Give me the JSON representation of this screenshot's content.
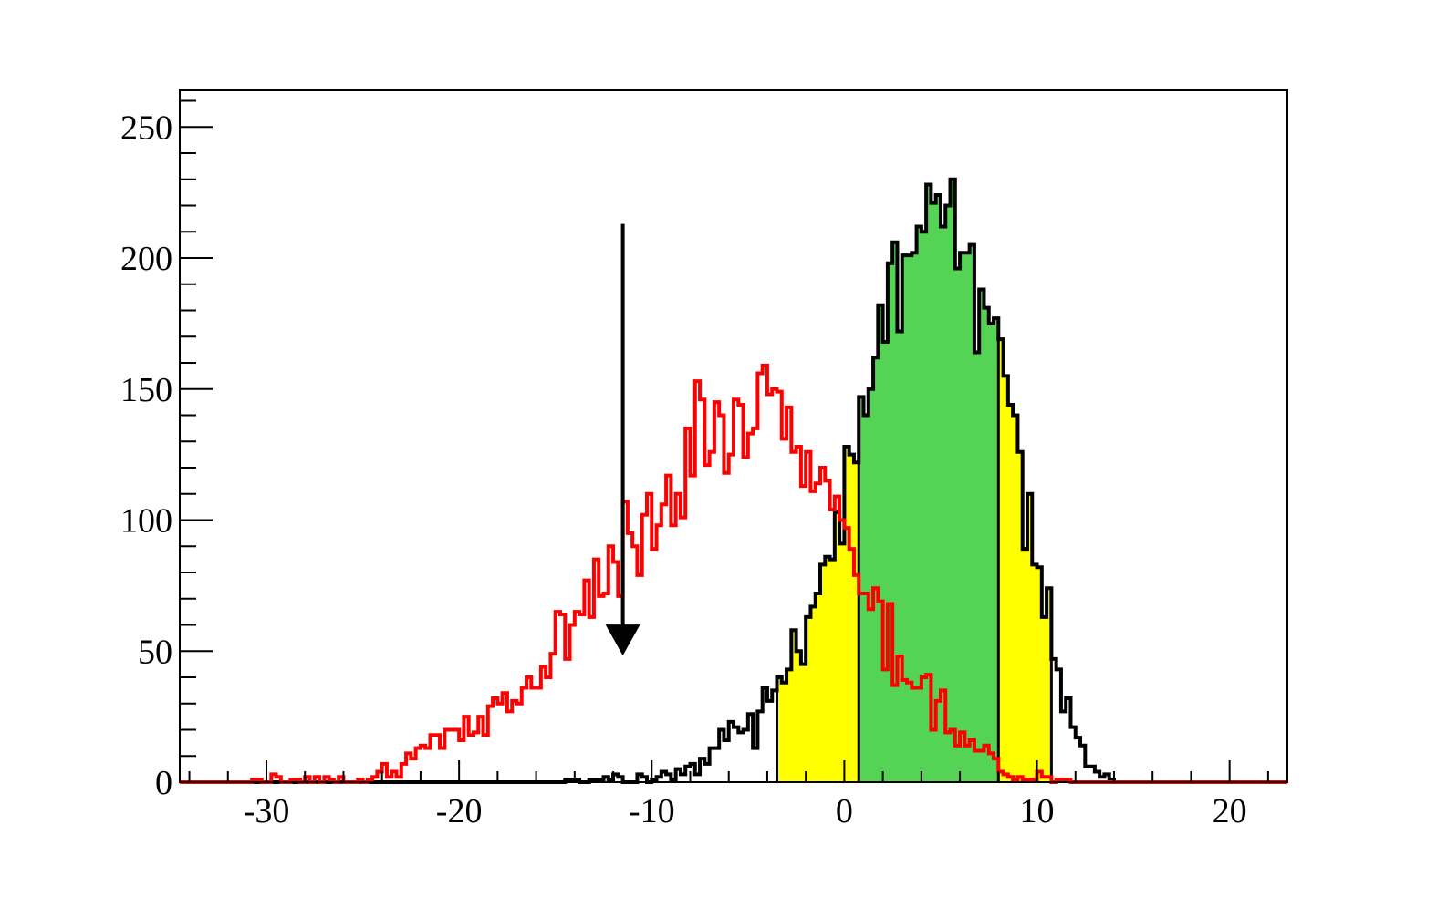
{
  "chart_data": {
    "type": "histogram",
    "title": "",
    "xlabel": "",
    "ylabel": "",
    "xlim": [
      -34.5,
      23
    ],
    "ylim": [
      0,
      264
    ],
    "x_ticks": [
      -30,
      -20,
      -10,
      0,
      10,
      20
    ],
    "x_tick_labels": [
      "-30",
      "-20",
      "-10",
      "0",
      "10",
      "20"
    ],
    "y_ticks": [
      0,
      50,
      100,
      150,
      200,
      250
    ],
    "y_tick_labels": [
      "0",
      "50",
      "100",
      "150",
      "200",
      "250"
    ],
    "grid": false,
    "legend": "none",
    "bin_width": 0.25,
    "series": [
      {
        "color": "#ff0000",
        "peak_x": -5.3,
        "x": [
          -35.5,
          -34,
          -33,
          -32,
          -31,
          -30,
          -29,
          -28,
          -27,
          -26,
          -25,
          -24,
          -23,
          -22,
          -21,
          -20,
          -19,
          -18,
          -17,
          -16,
          -15,
          -14,
          -13,
          -12,
          -11,
          -10,
          -9,
          -8,
          -7,
          -6,
          -5,
          -4,
          -3,
          -2,
          -1,
          0,
          1,
          2,
          3,
          4,
          5,
          6,
          7,
          8,
          9,
          10,
          11,
          12,
          13,
          14,
          15,
          16,
          17,
          18,
          19,
          20,
          21,
          22,
          23
        ],
        "y": [
          0,
          0,
          0,
          0,
          0,
          1,
          1,
          1,
          1,
          1,
          2,
          4,
          7,
          10,
          14,
          18,
          24,
          30,
          36,
          42,
          51,
          62,
          72,
          82,
          92,
          103,
          114,
          125,
          134,
          143,
          149,
          150,
          140,
          128,
          110,
          95,
          78,
          62,
          49,
          37,
          26,
          17,
          11,
          7,
          4,
          2,
          1,
          0,
          0,
          0,
          0,
          0,
          0,
          0,
          0,
          0,
          0,
          0,
          0
        ],
        "noise_seed": 7
      },
      {
        "color": "#000000",
        "peak_x": 5,
        "x": [
          -35.5,
          -20,
          -16,
          -14,
          -12,
          -10,
          -9,
          -8,
          -7,
          -6,
          -5,
          -4,
          -3,
          -2,
          -1,
          0,
          1,
          2,
          3,
          4,
          5,
          6,
          7,
          8,
          9,
          10,
          11,
          12,
          13,
          14,
          15,
          20,
          23
        ],
        "y": [
          0,
          0,
          0,
          1,
          1,
          2,
          3,
          5,
          10,
          16,
          22,
          28,
          38,
          52,
          82,
          110,
          145,
          170,
          195,
          215,
          225,
          215,
          195,
          165,
          130,
          88,
          45,
          15,
          4,
          0,
          0,
          0,
          0
        ],
        "noise_seed": 3
      }
    ],
    "shaded_bands": [
      {
        "color": "#ffff00",
        "from": -3.5,
        "to": 10.75
      },
      {
        "color": "#55d355",
        "from": 0.75,
        "to": 8
      }
    ],
    "annotation_arrow": {
      "x": -11.5,
      "y_from": 213,
      "y_to": 49
    }
  }
}
